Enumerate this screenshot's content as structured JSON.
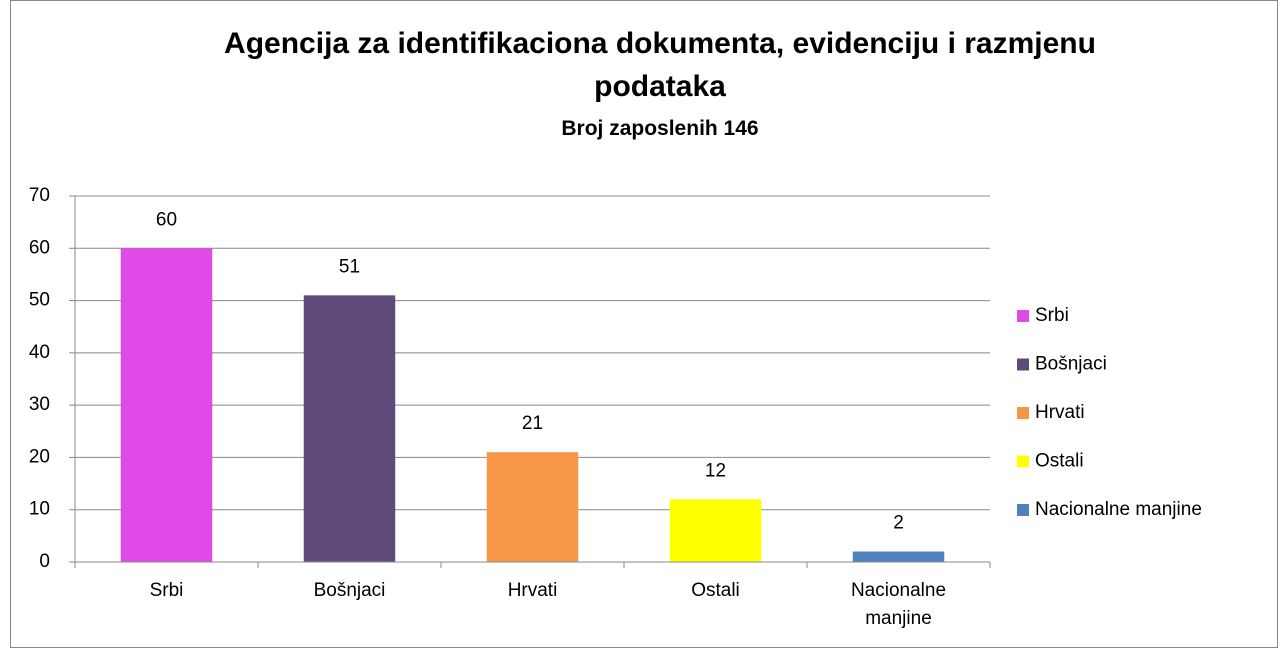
{
  "chart_data": {
    "type": "bar",
    "title": "Agencija za identifikaciona dokumenta, evidenciju i razmjenu podataka",
    "subtitle": "Broj zaposlenih 146",
    "categories": [
      "Srbi",
      "Bošnjaci",
      "Hrvati",
      "Ostali",
      "Nacionalne manjine"
    ],
    "values": [
      60,
      51,
      21,
      12,
      2
    ],
    "colors": [
      "#e04ae6",
      "#5f4a7c",
      "#f79646",
      "#ffff00",
      "#4f81bd"
    ],
    "ylim": [
      0,
      70
    ],
    "yticks": [
      0,
      10,
      20,
      30,
      40,
      50,
      60,
      70
    ],
    "grid": true,
    "legend": "right"
  }
}
